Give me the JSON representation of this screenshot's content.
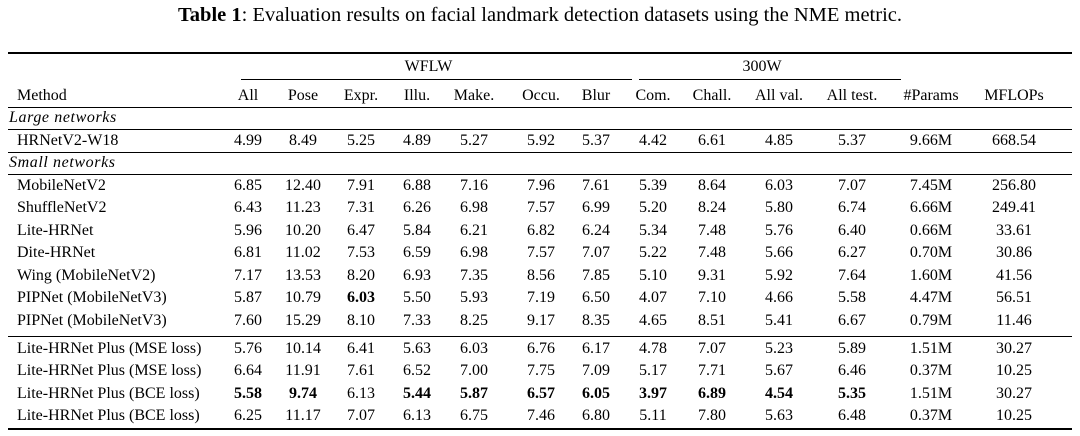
{
  "caption": {
    "prefix": "Table 1",
    "text": ": Evaluation results on facial landmark detection datasets using the NME metric."
  },
  "groups": {
    "wflw": "WFLW",
    "w300": "300W"
  },
  "headers": [
    "Method",
    "All",
    "Pose",
    "Expr.",
    "Illu.",
    "Make.",
    "Occu.",
    "Blur",
    "Com.",
    "Chall.",
    "All val.",
    "All test.",
    "#Params",
    "MFLOPs"
  ],
  "sections": {
    "large": "Large networks",
    "small": "Small networks"
  },
  "large_rows": [
    [
      "HRNetV2-W18",
      "4.99",
      "8.49",
      "5.25",
      "4.89",
      "5.27",
      "5.92",
      "5.37",
      "4.42",
      "6.61",
      "4.85",
      "5.37",
      "9.66M",
      "668.54"
    ]
  ],
  "small_rows": [
    [
      "MobileNetV2",
      "6.85",
      "12.40",
      "7.91",
      "6.88",
      "7.16",
      "7.96",
      "7.61",
      "5.39",
      "8.64",
      "6.03",
      "7.07",
      "7.45M",
      "256.80"
    ],
    [
      "ShuffleNetV2",
      "6.43",
      "11.23",
      "7.31",
      "6.26",
      "6.98",
      "7.57",
      "6.99",
      "5.20",
      "8.24",
      "5.80",
      "6.74",
      "6.66M",
      "249.41"
    ],
    [
      "Lite-HRNet",
      "5.96",
      "10.20",
      "6.47",
      "5.84",
      "6.21",
      "6.82",
      "6.24",
      "5.34",
      "7.48",
      "5.76",
      "6.40",
      "0.66M",
      "33.61"
    ],
    [
      "Dite-HRNet",
      "6.81",
      "11.02",
      "7.53",
      "6.59",
      "6.98",
      "7.57",
      "7.07",
      "5.22",
      "7.48",
      "5.66",
      "6.27",
      "0.70M",
      "30.86"
    ],
    [
      "Wing (MobileNetV2)",
      "7.17",
      "13.53",
      "8.20",
      "6.93",
      "7.35",
      "8.56",
      "7.85",
      "5.10",
      "9.31",
      "5.92",
      "7.64",
      "1.60M",
      "41.56"
    ],
    [
      "PIPNet (MobileNetV3)",
      "5.87",
      "10.79",
      "6.03",
      "5.50",
      "5.93",
      "7.19",
      "6.50",
      "4.07",
      "7.10",
      "4.66",
      "5.58",
      "4.47M",
      "56.51"
    ],
    [
      "PIPNet (MobileNetV3)",
      "7.60",
      "15.29",
      "8.10",
      "7.33",
      "8.25",
      "9.17",
      "8.35",
      "4.65",
      "8.51",
      "5.41",
      "6.67",
      "0.79M",
      "11.46"
    ]
  ],
  "ours_rows": [
    [
      "Lite-HRNet Plus (MSE loss)",
      "5.76",
      "10.14",
      "6.41",
      "5.63",
      "6.03",
      "6.76",
      "6.17",
      "4.78",
      "7.07",
      "5.23",
      "5.89",
      "1.51M",
      "30.27"
    ],
    [
      "Lite-HRNet Plus (MSE loss)",
      "6.64",
      "11.91",
      "7.61",
      "6.52",
      "7.00",
      "7.75",
      "7.09",
      "5.17",
      "7.71",
      "5.67",
      "6.46",
      "0.37M",
      "10.25"
    ],
    [
      "Lite-HRNet Plus (BCE loss)",
      "5.58",
      "9.74",
      "6.13",
      "5.44",
      "5.87",
      "6.57",
      "6.05",
      "3.97",
      "6.89",
      "4.54",
      "5.35",
      "1.51M",
      "30.27"
    ],
    [
      "Lite-HRNet Plus (BCE loss)",
      "6.25",
      "11.17",
      "7.07",
      "6.13",
      "6.75",
      "7.46",
      "6.80",
      "5.11",
      "7.80",
      "5.63",
      "6.48",
      "0.37M",
      "10.25"
    ]
  ],
  "bold_cells": {
    "small_rows.5": [
      3
    ],
    "ours_rows.2": [
      1,
      2,
      4,
      5,
      6,
      7,
      8,
      9,
      10,
      11
    ]
  }
}
